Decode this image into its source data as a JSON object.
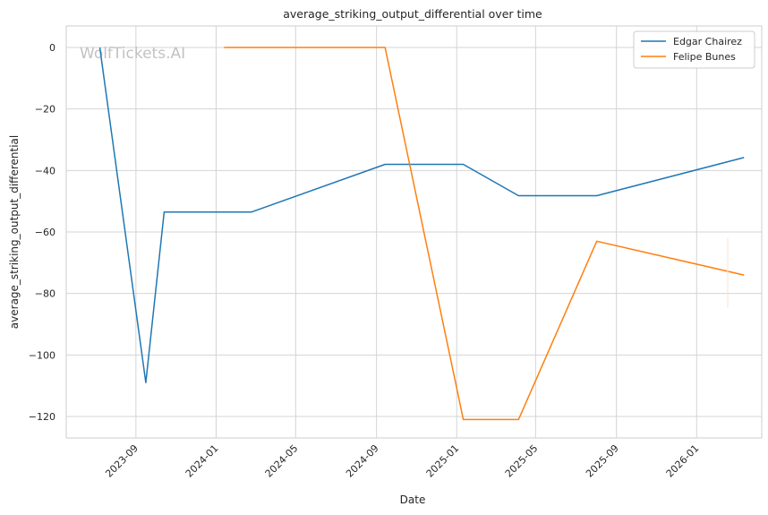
{
  "watermark": "WolfTickets.AI",
  "chart_data": {
    "type": "line",
    "title": "average_striking_output_differential over time",
    "xlabel": "Date",
    "ylabel": "average_striking_output_differential",
    "xlim": [
      "2023-05-18",
      "2026-04-10"
    ],
    "ylim": [
      -127,
      7
    ],
    "yticks": [
      0,
      -20,
      -40,
      -60,
      -80,
      -100,
      -120
    ],
    "ytick_labels": [
      "0",
      "−20",
      "−40",
      "−60",
      "−80",
      "−100",
      "−120"
    ],
    "xticks": [
      "2023-09-01",
      "2024-01-01",
      "2024-05-01",
      "2024-09-01",
      "2025-01-01",
      "2025-05-01",
      "2025-09-01",
      "2026-01-01"
    ],
    "xtick_labels": [
      "2023-09",
      "2024-01",
      "2024-05",
      "2024-09",
      "2025-01",
      "2025-05",
      "2025-09",
      "2026-01"
    ],
    "grid": true,
    "legend": "top-right",
    "series": [
      {
        "name": "Edgar Chairez",
        "color": "#1f77b4",
        "x": [
          "2023-07-08",
          "2023-09-16",
          "2023-10-14",
          "2024-02-24",
          "2024-09-14",
          "2025-01-11",
          "2025-04-05",
          "2025-08-02",
          "2026-03-14"
        ],
        "y": [
          0,
          -109,
          -53.5,
          -53.5,
          -38,
          -38,
          -48.2,
          -48.2,
          -35.8
        ]
      },
      {
        "name": "Felipe Bunes",
        "color": "#ff7f0e",
        "x": [
          "2024-01-13",
          "2024-09-14",
          "2025-01-11",
          "2025-04-05",
          "2025-08-02",
          "2026-03-14"
        ],
        "y": [
          0,
          0,
          -121,
          -121,
          -63,
          -74
        ]
      }
    ]
  }
}
